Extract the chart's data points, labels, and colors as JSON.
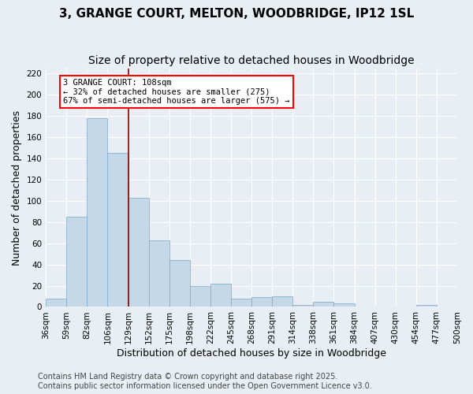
{
  "title": "3, GRANGE COURT, MELTON, WOODBRIDGE, IP12 1SL",
  "subtitle": "Size of property relative to detached houses in Woodbridge",
  "xlabel": "Distribution of detached houses by size in Woodbridge",
  "ylabel": "Number of detached properties",
  "bar_labels": [
    "36sqm",
    "59sqm",
    "82sqm",
    "106sqm",
    "129sqm",
    "152sqm",
    "175sqm",
    "198sqm",
    "222sqm",
    "245sqm",
    "268sqm",
    "291sqm",
    "314sqm",
    "338sqm",
    "361sqm",
    "384sqm",
    "407sqm",
    "430sqm",
    "454sqm",
    "477sqm",
    "500sqm"
  ],
  "bar_values": [
    8,
    85,
    178,
    145,
    103,
    63,
    44,
    20,
    22,
    8,
    9,
    10,
    2,
    5,
    3,
    0,
    0,
    0,
    2,
    0
  ],
  "bar_color": "#c5d8e8",
  "bar_edgecolor": "#7aa8c8",
  "vline_x": 3.5,
  "vline_color": "#8b0000",
  "annotation_text": "3 GRANGE COURT: 108sqm\n← 32% of detached houses are smaller (275)\n67% of semi-detached houses are larger (575) →",
  "annotation_box_color": "white",
  "annotation_box_edgecolor": "red",
  "ylim": [
    0,
    225
  ],
  "yticks": [
    0,
    20,
    40,
    60,
    80,
    100,
    120,
    140,
    160,
    180,
    200,
    220
  ],
  "background_color": "#e8eef4",
  "grid_color": "white",
  "footer": "Contains HM Land Registry data © Crown copyright and database right 2025.\nContains public sector information licensed under the Open Government Licence v3.0.",
  "title_fontsize": 11,
  "subtitle_fontsize": 10,
  "xlabel_fontsize": 9,
  "ylabel_fontsize": 9,
  "tick_fontsize": 7.5,
  "footer_fontsize": 7
}
